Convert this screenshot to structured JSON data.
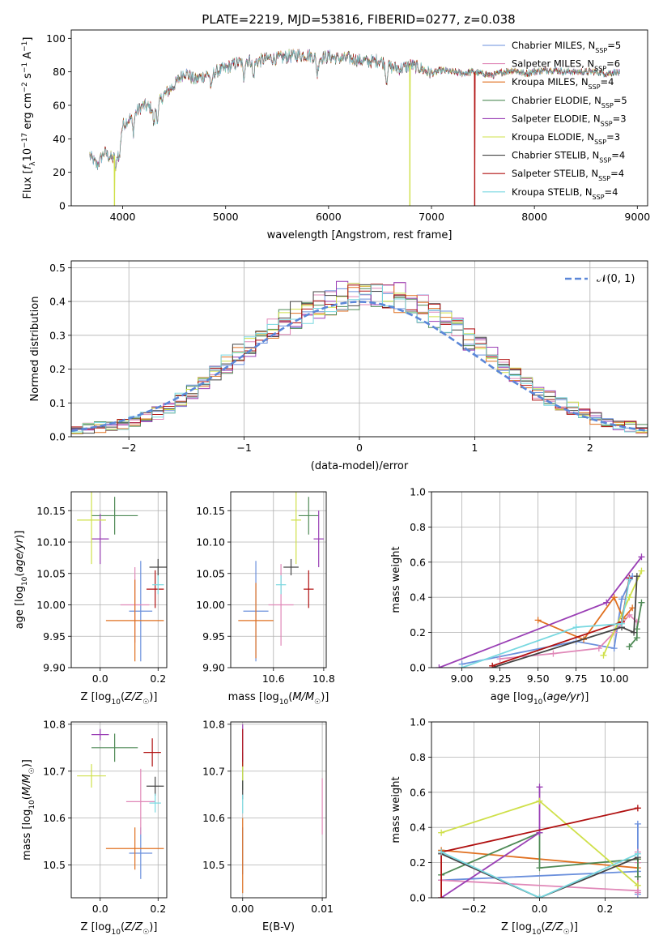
{
  "figure": {
    "title": "PLATE=2219, MJD=53816, FIBERID=0277, z=0.038"
  },
  "colors": {
    "chabrier_miles": "#6a8fdc",
    "salpeter_miles": "#e088b8",
    "kroupa_miles": "#e07020",
    "chabrier_elodie": "#4f8a56",
    "salpeter_elodie": "#9a3fb5",
    "kroupa_elodie": "#cfe04a",
    "chabrier_stelib": "#444444",
    "salpeter_stelib": "#b01010",
    "kroupa_stelib": "#78d8e0",
    "gauss": "#5b87d8",
    "grid": "#b0b0b0"
  },
  "chart_data": [
    {
      "id": "spectrum",
      "type": "line",
      "xlabel": "wavelength [Angstrom, rest frame]",
      "ylabel": "Flux [f_λ10^-17 erg cm^-2 s^-1 A^-1]",
      "xlim": [
        3500,
        9100
      ],
      "ylim": [
        0,
        105
      ],
      "xticks": [
        4000,
        5000,
        6000,
        7000,
        8000,
        9000
      ],
      "yticks": [
        0,
        20,
        40,
        60,
        80,
        100
      ],
      "grid": false,
      "legend_position": "right",
      "continuum": {
        "x": [
          3680,
          3750,
          3820,
          3900,
          3950,
          4000,
          4100,
          4200,
          4300,
          4400,
          4500,
          4600,
          4700,
          4800,
          4900,
          5000,
          5100,
          5200,
          5300,
          5400,
          5500,
          5600,
          5700,
          5800,
          5900,
          6000,
          6100,
          6200,
          6300,
          6400,
          6500,
          6600,
          6700,
          6800,
          6900,
          7000,
          7100,
          7200,
          7300,
          7400,
          7500,
          7600,
          7700,
          7800,
          7900,
          8000,
          8100,
          8200,
          8300,
          8400,
          8500,
          8600,
          8700,
          8800,
          8830
        ],
        "y": [
          30,
          24,
          32,
          28,
          33,
          48,
          54,
          60,
          58,
          66,
          72,
          80,
          75,
          78,
          80,
          82,
          85,
          87,
          86,
          88,
          88,
          89,
          90,
          90,
          88,
          89,
          88,
          88,
          87,
          86,
          87,
          83,
          82,
          84,
          82,
          79,
          81,
          80,
          79,
          80,
          79,
          78,
          80,
          81,
          79,
          80,
          81,
          81,
          80,
          80,
          80,
          80,
          79,
          80,
          79
        ]
      },
      "dropouts": [
        {
          "series": "Salpeter STELIB, N_SSP=4",
          "x": 7420
        },
        {
          "series": "Kroupa ELODIE, N_SSP=3",
          "x": 6790
        },
        {
          "series": "Kroupa ELODIE, N_SSP=3",
          "x": 3920
        }
      ],
      "series": [
        {
          "name": "Chabrier MILES, N",
          "sub": "SSP",
          "count": "=5",
          "key": "chabrier_miles"
        },
        {
          "name": "Salpeter MILES, N",
          "sub": "SSP",
          "count": "=6",
          "key": "salpeter_miles"
        },
        {
          "name": "Kroupa MILES, N",
          "sub": "SSP",
          "count": "=4",
          "key": "kroupa_miles"
        },
        {
          "name": "Chabrier ELODIE, N",
          "sub": "SSP",
          "count": "=5",
          "key": "chabrier_elodie"
        },
        {
          "name": "Salpeter ELODIE, N",
          "sub": "SSP",
          "count": "=3",
          "key": "salpeter_elodie"
        },
        {
          "name": "Kroupa ELODIE, N",
          "sub": "SSP",
          "count": "=3",
          "key": "kroupa_elodie"
        },
        {
          "name": "Chabrier STELIB, N",
          "sub": "SSP",
          "count": "=4",
          "key": "chabrier_stelib"
        },
        {
          "name": "Salpeter STELIB, N",
          "sub": "SSP",
          "count": "=4",
          "key": "salpeter_stelib"
        },
        {
          "name": "Kroupa STELIB, N",
          "sub": "SSP",
          "count": "=4",
          "key": "kroupa_stelib"
        }
      ]
    },
    {
      "id": "residuals",
      "type": "histogram",
      "xlabel": "(data-model)/error",
      "ylabel": "Normed distribution",
      "xlim": [
        -2.5,
        2.5
      ],
      "ylim": [
        0,
        0.52
      ],
      "xticks": [
        -2,
        -1,
        0,
        1,
        2
      ],
      "yticks": [
        0.0,
        0.1,
        0.2,
        0.3,
        0.4,
        0.5
      ],
      "grid": true,
      "legend": "N(0,1)",
      "bin_width": 0.1,
      "envelope": {
        "x": [
          -2.5,
          -2.2,
          -2.0,
          -1.8,
          -1.5,
          -1.2,
          -1.0,
          -0.8,
          -0.5,
          -0.3,
          -0.1,
          0.1,
          0.3,
          0.5,
          0.7,
          1.0,
          1.2,
          1.5,
          1.8,
          2.0,
          2.2,
          2.5
        ],
        "y": [
          0.02,
          0.03,
          0.04,
          0.06,
          0.12,
          0.2,
          0.26,
          0.31,
          0.37,
          0.4,
          0.42,
          0.42,
          0.42,
          0.39,
          0.35,
          0.28,
          0.22,
          0.14,
          0.09,
          0.06,
          0.04,
          0.02
        ]
      }
    },
    {
      "id": "age_vs_Z",
      "type": "errorbar",
      "xlabel": "Z [log10(Z/Z☉)]",
      "ylabel": "age  [log10(age/yr)]",
      "xlim": [
        -0.1,
        0.23
      ],
      "ylim": [
        9.9,
        10.18
      ],
      "xticks": [
        0.0,
        0.2
      ],
      "yticks": [
        9.9,
        9.95,
        10.0,
        10.05,
        10.1,
        10.15
      ],
      "grid": true,
      "points": [
        {
          "key": "chabrier_miles",
          "x": 0.14,
          "y": 9.99,
          "xe": 0.04,
          "ye": 0.08
        },
        {
          "key": "salpeter_miles",
          "x": 0.12,
          "y": 10.0,
          "xe": 0.05,
          "ye": 0.06
        },
        {
          "key": "kroupa_miles",
          "x": 0.12,
          "y": 9.975,
          "xe": 0.1,
          "ye": 0.065
        },
        {
          "key": "chabrier_elodie",
          "x": 0.05,
          "y": 10.142,
          "xe": 0.08,
          "ye": 0.03
        },
        {
          "key": "salpeter_elodie",
          "x": 0.0,
          "y": 10.105,
          "xe": 0.03,
          "ye": 0.04
        },
        {
          "key": "kroupa_elodie",
          "x": -0.03,
          "y": 10.135,
          "xe": 0.05,
          "ye": 0.07
        },
        {
          "key": "chabrier_stelib",
          "x": 0.2,
          "y": 10.06,
          "xe": 0.03,
          "ye": 0.013
        },
        {
          "key": "salpeter_stelib",
          "x": 0.19,
          "y": 10.025,
          "xe": 0.03,
          "ye": 0.03
        },
        {
          "key": "kroupa_stelib",
          "x": 0.2,
          "y": 10.032,
          "xe": 0.02,
          "ye": 0.015
        }
      ]
    },
    {
      "id": "age_vs_mass",
      "type": "errorbar",
      "xlabel": "mass [log10(M/M☉)]",
      "ylabel": "",
      "xlim": [
        10.43,
        10.81
      ],
      "ylim": [
        9.9,
        10.18
      ],
      "xticks": [
        10.6,
        10.8
      ],
      "yticks": [
        9.9,
        9.95,
        10.0,
        10.05,
        10.1,
        10.15
      ],
      "grid": true,
      "points": [
        {
          "key": "chabrier_miles",
          "x": 10.53,
          "y": 9.99,
          "xe": 0.05,
          "ye": 0.08
        },
        {
          "key": "salpeter_miles",
          "x": 10.63,
          "y": 10.0,
          "xe": 0.05,
          "ye": 0.065
        },
        {
          "key": "kroupa_miles",
          "x": 10.53,
          "y": 9.975,
          "xe": 0.07,
          "ye": 0.06
        },
        {
          "key": "chabrier_elodie",
          "x": 10.74,
          "y": 10.142,
          "xe": 0.04,
          "ye": 0.03
        },
        {
          "key": "salpeter_elodie",
          "x": 10.78,
          "y": 10.105,
          "xe": 0.02,
          "ye": 0.045
        },
        {
          "key": "kroupa_elodie",
          "x": 10.69,
          "y": 10.135,
          "xe": 0.02,
          "ye": 0.07
        },
        {
          "key": "chabrier_stelib",
          "x": 10.67,
          "y": 10.06,
          "xe": 0.03,
          "ye": 0.013
        },
        {
          "key": "salpeter_stelib",
          "x": 10.74,
          "y": 10.025,
          "xe": 0.02,
          "ye": 0.03
        },
        {
          "key": "kroupa_stelib",
          "x": 10.63,
          "y": 10.032,
          "xe": 0.02,
          "ye": 0.015
        }
      ]
    },
    {
      "id": "mass_weight_vs_age",
      "type": "line",
      "xlabel": "age  [log10(age/yr)]",
      "ylabel": "mass weight",
      "xlim": [
        8.8,
        10.22
      ],
      "ylim": [
        0.0,
        1.0
      ],
      "xticks": [
        9.0,
        9.25,
        9.5,
        9.75,
        10.0
      ],
      "yticks": [
        0.0,
        0.2,
        0.4,
        0.6,
        0.8,
        1.0
      ],
      "grid": true,
      "series": [
        {
          "key": "chabrier_miles",
          "x": [
            9.0,
            9.75,
            10.0,
            10.05,
            10.12
          ],
          "y": [
            0.02,
            0.15,
            0.11,
            0.39,
            0.52
          ]
        },
        {
          "key": "salpeter_miles",
          "x": [
            9.25,
            9.6,
            9.9,
            10.0,
            10.1,
            10.15
          ],
          "y": [
            0.05,
            0.08,
            0.11,
            0.2,
            0.3,
            0.26
          ]
        },
        {
          "key": "kroupa_miles",
          "x": [
            9.5,
            9.8,
            10.0,
            10.06,
            10.12
          ],
          "y": [
            0.27,
            0.16,
            0.4,
            0.28,
            0.34
          ]
        },
        {
          "key": "chabrier_elodie",
          "x": [
            10.1,
            10.15,
            10.15,
            10.18
          ],
          "y": [
            0.12,
            0.17,
            0.22,
            0.37
          ]
        },
        {
          "key": "salpeter_elodie",
          "x": [
            8.85,
            9.95,
            10.18
          ],
          "y": [
            0.0,
            0.37,
            0.63
          ]
        },
        {
          "key": "kroupa_elodie",
          "x": [
            9.93,
            10.1,
            10.18
          ],
          "y": [
            0.07,
            0.4,
            0.55
          ]
        },
        {
          "key": "chabrier_stelib",
          "x": [
            9.2,
            10.05,
            10.13,
            10.15
          ],
          "y": [
            0.0,
            0.23,
            0.2,
            0.52
          ]
        },
        {
          "key": "salpeter_stelib",
          "x": [
            9.2,
            10.05,
            10.1
          ],
          "y": [
            0.01,
            0.26,
            0.51
          ]
        },
        {
          "key": "kroupa_stelib",
          "x": [
            9.0,
            9.75,
            10.05,
            10.1
          ],
          "y": [
            0.0,
            0.23,
            0.25,
            0.5
          ]
        }
      ]
    },
    {
      "id": "mass_vs_Z",
      "type": "errorbar",
      "xlabel": "Z [log10(Z/Z☉)]",
      "ylabel": "mass [log10(M/M☉)]",
      "xlim": [
        -0.1,
        0.23
      ],
      "ylim": [
        10.43,
        10.805
      ],
      "xticks": [
        0.0,
        0.2
      ],
      "yticks": [
        10.5,
        10.6,
        10.7,
        10.8
      ],
      "grid": true,
      "points": [
        {
          "key": "chabrier_miles",
          "x": 0.14,
          "y": 10.525,
          "xe": 0.04,
          "ye": 0.055
        },
        {
          "key": "salpeter_miles",
          "x": 0.14,
          "y": 10.635,
          "xe": 0.05,
          "ye": 0.07
        },
        {
          "key": "kroupa_miles",
          "x": 0.12,
          "y": 10.535,
          "xe": 0.1,
          "ye": 0.045
        },
        {
          "key": "chabrier_elodie",
          "x": 0.05,
          "y": 10.75,
          "xe": 0.08,
          "ye": 0.03
        },
        {
          "key": "salpeter_elodie",
          "x": 0.0,
          "y": 10.778,
          "xe": 0.03,
          "ye": 0.012
        },
        {
          "key": "kroupa_elodie",
          "x": -0.03,
          "y": 10.69,
          "xe": 0.05,
          "ye": 0.025
        },
        {
          "key": "chabrier_stelib",
          "x": 0.19,
          "y": 10.668,
          "xe": 0.03,
          "ye": 0.02
        },
        {
          "key": "salpeter_stelib",
          "x": 0.18,
          "y": 10.74,
          "xe": 0.03,
          "ye": 0.03
        },
        {
          "key": "kroupa_stelib",
          "x": 0.19,
          "y": 10.632,
          "xe": 0.02,
          "ye": 0.02
        }
      ]
    },
    {
      "id": "mass_vs_ebv",
      "type": "errorbar",
      "xlabel": "E(B-V)",
      "ylabel": "",
      "xlim": [
        -0.0015,
        0.0105
      ],
      "ylim": [
        10.43,
        10.805
      ],
      "xticks": [
        0.0,
        0.01
      ],
      "yticks": [
        10.5,
        10.6,
        10.7,
        10.8
      ],
      "grid": true,
      "points": [
        {
          "key": "chabrier_miles",
          "x": 0.0,
          "y": 10.53,
          "xe": 0.0,
          "ye": 0.05
        },
        {
          "key": "salpeter_miles",
          "x": 0.01,
          "y": 10.625,
          "xe": 0.0,
          "ye": 0.06
        },
        {
          "key": "kroupa_miles",
          "x": 0.0,
          "y": 10.52,
          "xe": 0.0,
          "ye": 0.08
        },
        {
          "key": "chabrier_elodie",
          "x": 0.0,
          "y": 10.7,
          "xe": 0.0,
          "ye": 0.04
        },
        {
          "key": "salpeter_elodie",
          "x": 0.0,
          "y": 10.76,
          "xe": 0.0,
          "ye": 0.04
        },
        {
          "key": "kroupa_elodie",
          "x": 0.0,
          "y": 10.7,
          "xe": 0.0,
          "ye": 0.02
        },
        {
          "key": "chabrier_stelib",
          "x": 0.0,
          "y": 10.66,
          "xe": 0.0,
          "ye": 0.02
        },
        {
          "key": "salpeter_stelib",
          "x": 0.0,
          "y": 10.75,
          "xe": 0.0,
          "ye": 0.04
        },
        {
          "key": "kroupa_stelib",
          "x": 0.0,
          "y": 10.63,
          "xe": 0.0,
          "ye": 0.02
        }
      ]
    },
    {
      "id": "mass_weight_vs_Z",
      "type": "line",
      "xlabel": "Z [log10(Z/Z☉)]",
      "ylabel": "mass weight",
      "xlim": [
        -0.33,
        0.33
      ],
      "ylim": [
        0.0,
        1.0
      ],
      "xticks": [
        -0.2,
        0.0,
        0.2
      ],
      "yticks": [
        0.0,
        0.2,
        0.4,
        0.6,
        0.8,
        1.0
      ],
      "grid": true,
      "series": [
        {
          "key": "chabrier_miles",
          "x": [
            -0.3,
            0.3,
            0.3,
            0.3
          ],
          "y": [
            0.1,
            0.15,
            0.42,
            0.02
          ]
        },
        {
          "key": "salpeter_miles",
          "x": [
            -0.3,
            0.3,
            0.3,
            0.3,
            0.3
          ],
          "y": [
            0.1,
            0.04,
            0.26,
            0.2,
            0.03
          ]
        },
        {
          "key": "kroupa_miles",
          "x": [
            -0.3,
            0.3,
            0.3
          ],
          "y": [
            0.27,
            0.17,
            0.22
          ]
        },
        {
          "key": "chabrier_elodie",
          "x": [
            -0.3,
            0.0,
            0.0,
            0.3,
            0.3
          ],
          "y": [
            0.13,
            0.37,
            0.17,
            0.22,
            0.12
          ]
        },
        {
          "key": "salpeter_elodie",
          "x": [
            -0.3,
            0.0,
            0.0
          ],
          "y": [
            0.0,
            0.37,
            0.63
          ]
        },
        {
          "key": "kroupa_elodie",
          "x": [
            -0.3,
            0.0,
            0.3
          ],
          "y": [
            0.37,
            0.55,
            0.07
          ]
        },
        {
          "key": "chabrier_stelib",
          "x": [
            -0.3,
            0.0,
            0.3
          ],
          "y": [
            0.25,
            0.0,
            0.23
          ]
        },
        {
          "key": "salpeter_stelib",
          "x": [
            -0.3,
            -0.3,
            0.3
          ],
          "y": [
            0.0,
            0.26,
            0.51
          ]
        },
        {
          "key": "kroupa_stelib",
          "x": [
            -0.3,
            0.0,
            0.3
          ],
          "y": [
            0.26,
            0.0,
            0.25
          ]
        }
      ]
    }
  ]
}
